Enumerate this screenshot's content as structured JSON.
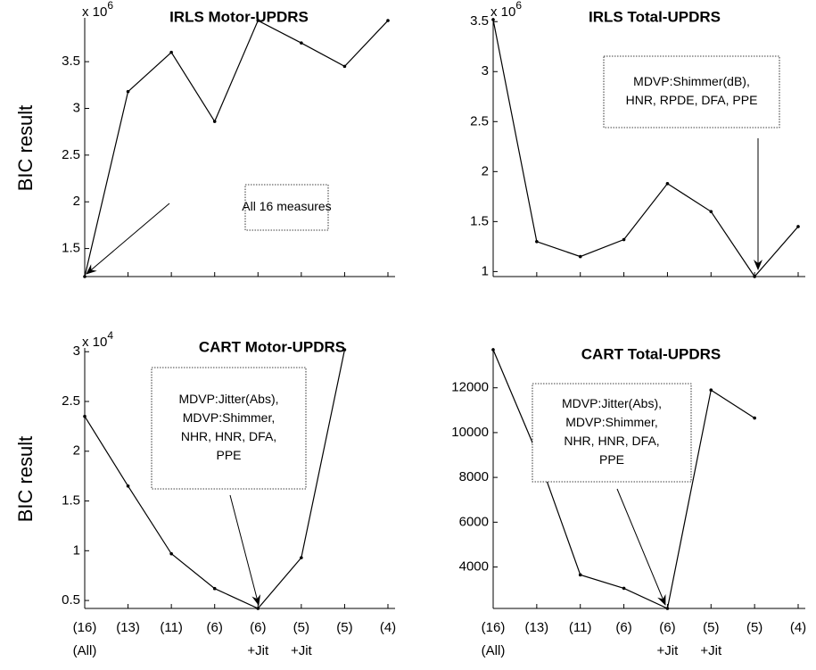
{
  "chart_data": [
    {
      "type": "line",
      "title": "IRLS Motor-UPDRS",
      "multiplier": {
        "base": "x 10",
        "power": "6"
      },
      "y_label": "BIC result",
      "categories": [
        null,
        null,
        null,
        null,
        null,
        null,
        null,
        null
      ],
      "values": [
        1.2,
        3.18,
        3.6,
        2.86,
        3.94,
        3.7,
        3.45,
        3.94
      ],
      "ylim": [
        1.2,
        3.95
      ],
      "yticks": [
        1.5,
        2,
        2.5,
        3,
        3.5
      ],
      "color": "#000000",
      "annotation": [
        "All 16 measures"
      ]
    },
    {
      "type": "line",
      "title": "IRLS Total-UPDRS",
      "multiplier": {
        "base": "x 10",
        "power": "6"
      },
      "categories": [
        null,
        null,
        null,
        null,
        null,
        null,
        null,
        null
      ],
      "values": [
        3.52,
        1.3,
        1.15,
        1.32,
        1.88,
        1.6,
        0.95,
        1.45
      ],
      "ylim": [
        0.95,
        3.52
      ],
      "yticks": [
        1,
        1.5,
        2,
        2.5,
        3,
        3.5
      ],
      "color": "#000000",
      "annotation": [
        "MDVP:Shimmer(dB),",
        "HNR, RPDE, DFA, PPE"
      ]
    },
    {
      "type": "line",
      "title": "CART Motor-UPDRS",
      "multiplier": {
        "base": "x 10",
        "power": "4"
      },
      "y_label": "BIC result",
      "categories": [
        "(16)",
        "(13)",
        "(11)",
        "(6)",
        "(6)",
        "(5)",
        "(5)",
        "(4)"
      ],
      "sublabels": [
        "(All)",
        null,
        null,
        null,
        "+Jit",
        "+Jit",
        null,
        null
      ],
      "values": [
        2.35,
        1.65,
        0.97,
        0.62,
        0.42,
        0.93,
        3.02,
        null
      ],
      "ylim": [
        0.42,
        3.02
      ],
      "yticks": [
        0.5,
        1,
        1.5,
        2,
        2.5,
        3
      ],
      "color": "#000000",
      "annotation": [
        "MDVP:Jitter(Abs),",
        "MDVP:Shimmer,",
        "NHR, HNR, DFA,",
        "PPE"
      ]
    },
    {
      "type": "line",
      "title": "CART Total-UPDRS",
      "categories": [
        "(16)",
        "(13)",
        "(11)",
        "(6)",
        "(6)",
        "(5)",
        "(5)",
        "(4)"
      ],
      "sublabels": [
        "(All)",
        null,
        null,
        null,
        "+Jit",
        "+Jit",
        null,
        null
      ],
      "values": [
        13700,
        9100,
        3650,
        3050,
        2150,
        11900,
        10650,
        null
      ],
      "ylim": [
        2150,
        13700
      ],
      "yticks": [
        4000,
        6000,
        8000,
        10000,
        12000
      ],
      "color": "#000000",
      "annotation": [
        "MDVP:Jitter(Abs),",
        "MDVP:Shimmer,",
        "NHR, HNR, DFA,",
        "PPE"
      ]
    }
  ]
}
